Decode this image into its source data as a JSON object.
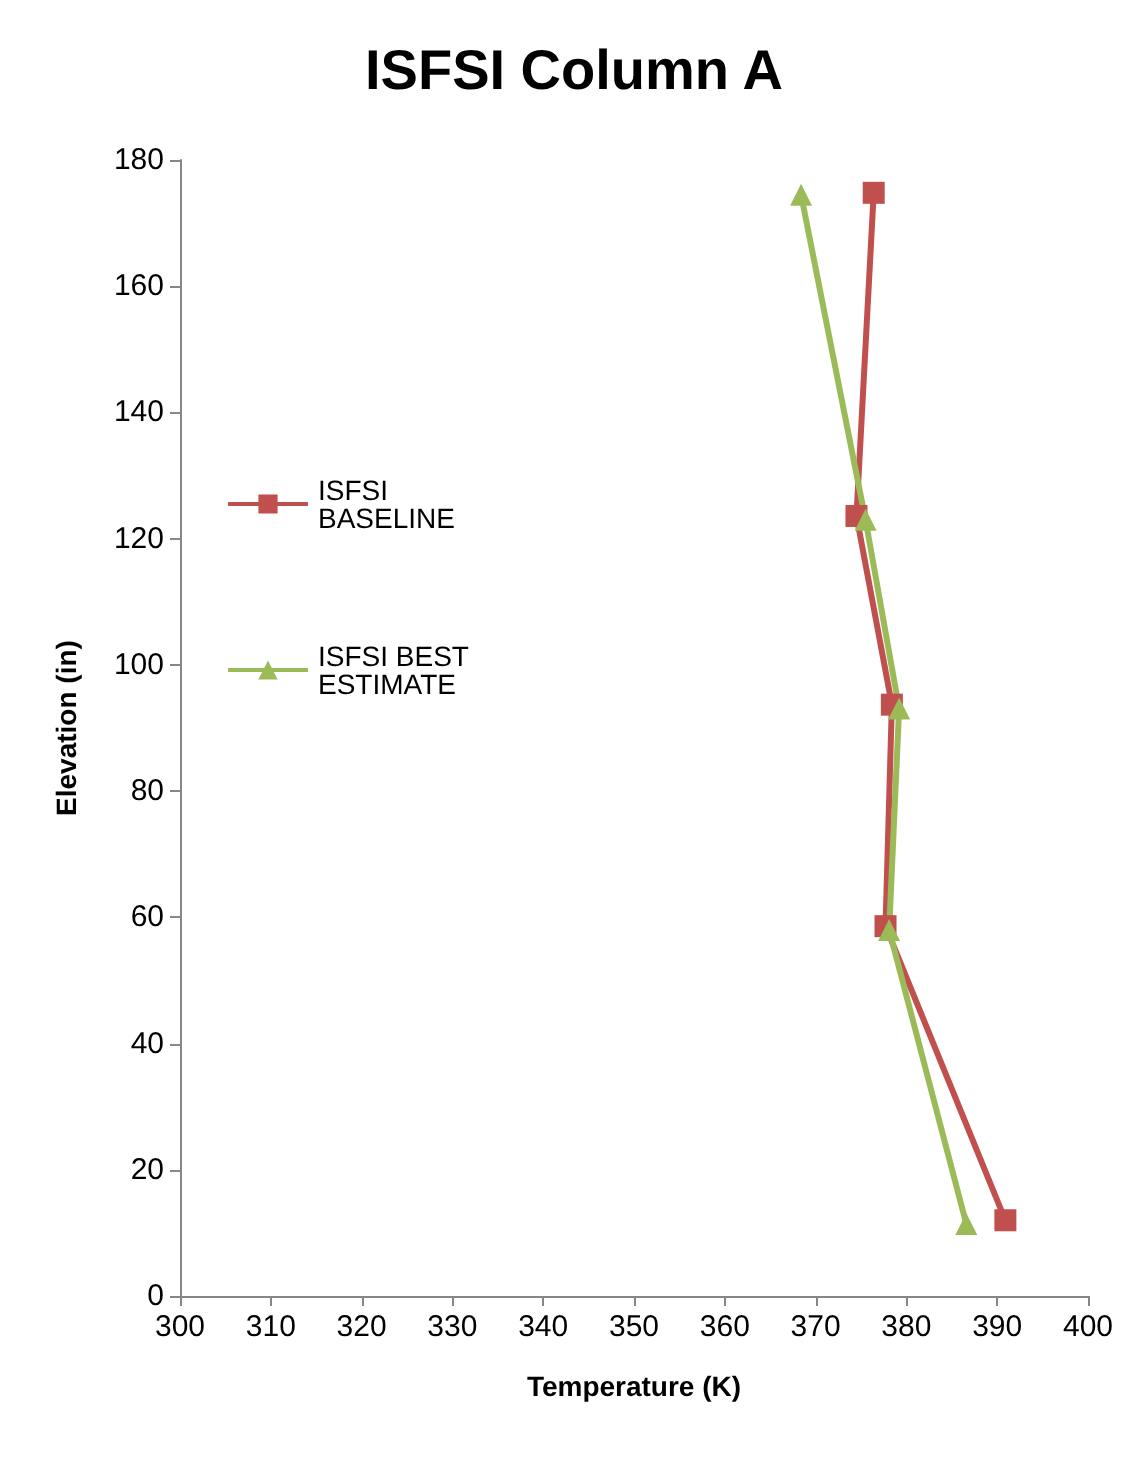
{
  "chart_data": {
    "type": "line",
    "title": "ISFSI Column A",
    "xlabel": "Temperature (K)",
    "ylabel": "Elevation (in)",
    "series": [
      {
        "name": "ISFSI BASELINE",
        "color": "#c0504d",
        "marker": "square",
        "x": [
          376.4,
          374.5,
          378.4,
          377.7,
          390.9
        ],
        "values": [
          174.8,
          123.6,
          93.7,
          58.6,
          12.0
        ]
      },
      {
        "name": "ISFSI BEST ESTIMATE",
        "color": "#9bbb59",
        "marker": "triangle",
        "x": [
          368.4,
          375.5,
          379.2,
          378.1,
          386.6
        ],
        "values": [
          174.5,
          123.0,
          93.1,
          58.0,
          11.4
        ]
      }
    ],
    "xlim": [
      300,
      400
    ],
    "xticks": [
      300,
      310,
      320,
      330,
      340,
      350,
      360,
      370,
      380,
      390,
      400
    ],
    "ylim": [
      0,
      180
    ],
    "yticks": [
      0,
      20,
      40,
      60,
      80,
      100,
      120,
      140,
      160,
      180
    ],
    "grid": false,
    "legend": "left",
    "line_style": "solid"
  }
}
